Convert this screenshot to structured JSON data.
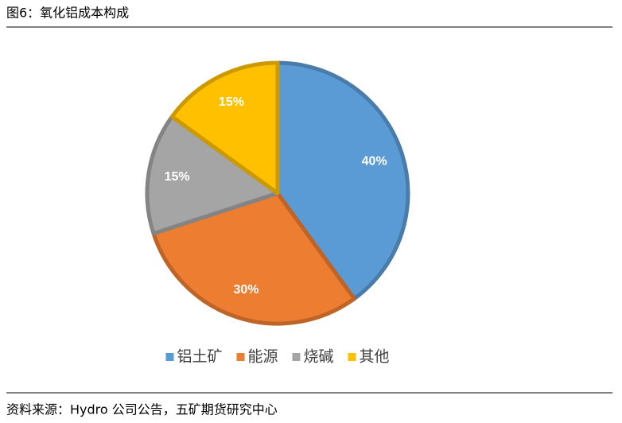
{
  "chart_data": {
    "type": "pie",
    "title": "图6：氧化铝成本构成",
    "categories": [
      "铝土矿",
      "能源",
      "烧碱",
      "其他"
    ],
    "values": [
      40,
      30,
      15,
      15
    ],
    "value_labels": [
      "40%",
      "30%",
      "15%",
      "15%"
    ],
    "colors": [
      "#5b9bd5",
      "#ed7d31",
      "#a5a5a5",
      "#ffc000"
    ],
    "legend": "bottom",
    "source": "资料来源：Hydro 公司公告，五矿期货研究中心"
  }
}
